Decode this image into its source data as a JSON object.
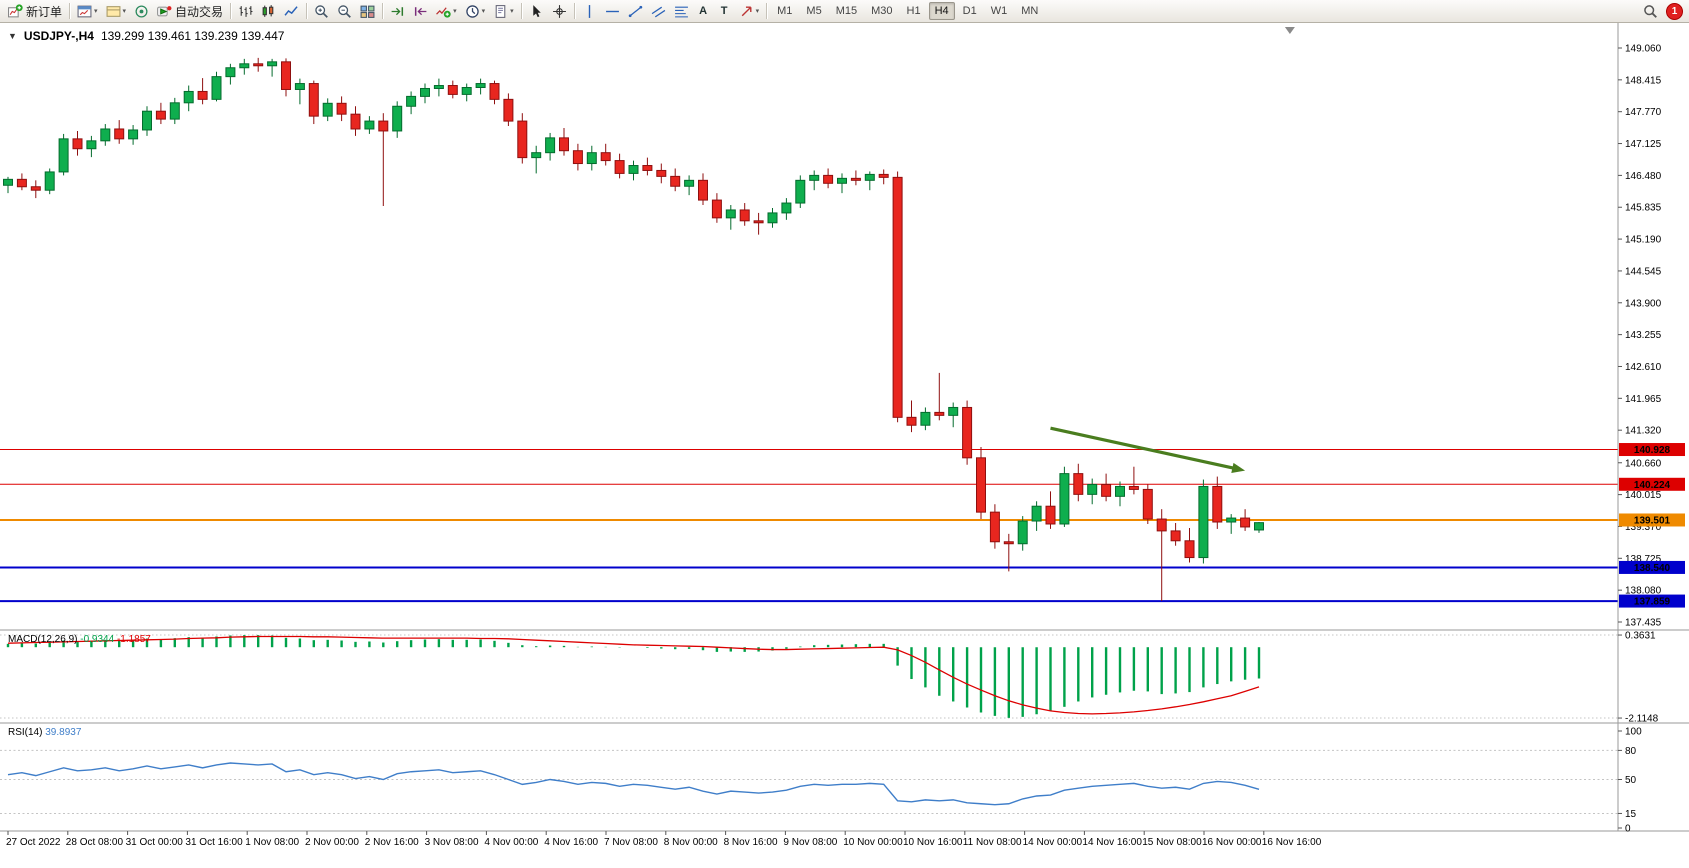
{
  "toolbar": {
    "items": [
      {
        "type": "button",
        "name": "new-order-button",
        "icon": "new-order-icon",
        "label": "新订单"
      },
      {
        "type": "sep"
      },
      {
        "type": "button",
        "name": "charts-button",
        "icon": "chart-window-icon",
        "caret": true
      },
      {
        "type": "button",
        "name": "profiles-button",
        "icon": "profiles-icon",
        "caret": true
      },
      {
        "type": "button",
        "name": "community-button",
        "icon": "community-icon"
      },
      {
        "type": "button",
        "name": "autotrading-button",
        "icon": "autotrading-icon",
        "label": "自动交易"
      },
      {
        "type": "sep"
      },
      {
        "type": "button",
        "name": "bar-chart-button",
        "icon": "bars-icon"
      },
      {
        "type": "button",
        "name": "candlestick-chart-button",
        "icon": "candles-icon"
      },
      {
        "type": "button",
        "name": "line-chart-button",
        "icon": "line-chart-icon"
      },
      {
        "type": "sep"
      },
      {
        "type": "button",
        "name": "zoom-in-button",
        "icon": "zoom-in-icon"
      },
      {
        "type": "button",
        "name": "zoom-out-button",
        "icon": "zoom-out-icon"
      },
      {
        "type": "button",
        "name": "tile-windows-button",
        "icon": "tile-windows-icon"
      },
      {
        "type": "sep"
      },
      {
        "type": "button",
        "name": "auto-scroll-button",
        "icon": "auto-scroll-icon"
      },
      {
        "type": "button",
        "name": "chart-shift-button",
        "icon": "chart-shift-icon"
      },
      {
        "type": "button",
        "name": "indicators-button",
        "icon": "indicators-icon",
        "caret": true
      },
      {
        "type": "button",
        "name": "periods-button",
        "icon": "periods-icon",
        "caret": true
      },
      {
        "type": "button",
        "name": "templates-button",
        "icon": "templates-icon",
        "caret": true
      },
      {
        "type": "sep"
      },
      {
        "type": "button",
        "name": "cursor-button",
        "icon": "cursor-icon"
      },
      {
        "type": "button",
        "name": "crosshair-button",
        "icon": "crosshair-icon"
      },
      {
        "type": "sep"
      },
      {
        "type": "button",
        "name": "vertical-line-button",
        "icon": "vline-icon"
      },
      {
        "type": "button",
        "name": "horizontal-line-button",
        "icon": "hline-icon"
      },
      {
        "type": "button",
        "name": "trendline-button",
        "icon": "trendline-icon"
      },
      {
        "type": "button",
        "name": "channel-button",
        "icon": "channel-icon"
      },
      {
        "type": "button",
        "name": "fibonacci-button",
        "icon": "fibonacci-icon"
      },
      {
        "type": "button",
        "name": "text-button",
        "glyph": "A"
      },
      {
        "type": "button",
        "name": "text-label-button",
        "glyph": "T"
      },
      {
        "type": "button",
        "name": "arrows-button",
        "icon": "arrows-tool-icon",
        "caret": true
      },
      {
        "type": "sep"
      }
    ],
    "timeframes": [
      {
        "label": "M1"
      },
      {
        "label": "M5"
      },
      {
        "label": "M15"
      },
      {
        "label": "M30"
      },
      {
        "label": "H1"
      },
      {
        "label": "H4"
      },
      {
        "label": "D1"
      },
      {
        "label": "W1"
      },
      {
        "label": "MN"
      }
    ],
    "active_timeframe": "H4",
    "right": [
      {
        "name": "search-button",
        "icon": "search-icon"
      },
      {
        "name": "notifications-button",
        "badge": "1"
      }
    ]
  },
  "chart": {
    "header": {
      "collapse_glyph": "▼",
      "symbol": "USDJPY-,H4",
      "ohlc": "139.299 139.461 139.239 139.447"
    },
    "price_axis_labels": [
      "149.060",
      "148.415",
      "147.770",
      "147.125",
      "146.480",
      "145.835",
      "145.190",
      "144.545",
      "143.900",
      "143.255",
      "142.610",
      "141.965",
      "141.320",
      "140.660",
      "140.015",
      "139.370",
      "138.725",
      "138.080",
      "137.435"
    ],
    "hlines": [
      {
        "price": 140.928,
        "label": "140.928",
        "color": "#dd0000",
        "width": 1
      },
      {
        "price": 140.224,
        "label": "140.224",
        "color": "#dd0000",
        "width": 1
      },
      {
        "price": 139.501,
        "label": "139.501",
        "color": "#ef8a00",
        "width": 2
      },
      {
        "price": 138.54,
        "label": "138.540",
        "color": "#0000cc",
        "width": 2
      },
      {
        "price": 137.859,
        "label": "137.859",
        "color": "#0000cc",
        "width": 2
      }
    ],
    "time_axis_labels": [
      "27 Oct 2022",
      "28 Oct 08:00",
      "31 Oct 00:00",
      "31 Oct 16:00",
      "1 Nov 08:00",
      "2 Nov 00:00",
      "2 Nov 16:00",
      "3 Nov 08:00",
      "4 Nov 00:00",
      "4 Nov 16:00",
      "7 Nov 08:00",
      "8 Nov 00:00",
      "8 Nov 16:00",
      "9 Nov 08:00",
      "10 Nov 00:00",
      "10 Nov 16:00",
      "11 Nov 08:00",
      "14 Nov 00:00",
      "14 Nov 16:00",
      "15 Nov 08:00",
      "16 Nov 00:00",
      "16 Nov 16:00"
    ],
    "arrow": {
      "from_idx": 75,
      "from_price": 141.36,
      "to_idx": 89,
      "to_price": 140.5
    }
  },
  "colors": {
    "bull": "#0fae4e",
    "bull_edge": "#046b2d",
    "bear": "#e8261f",
    "bear_edge": "#8f0f0f",
    "macd_hist": "#00a24a",
    "macd_signal": "#dd0000",
    "rsi": "#3f7ec9",
    "arrow": "#4a7d1f",
    "badge_text": "#ffffff",
    "axis_line": "#9a9a9a",
    "level_dots": "#c4c4c4"
  },
  "chart_data": {
    "type": "candlestick",
    "symbol": "USDJPY",
    "timeframe": "H4",
    "candles_ohlc": [
      [
        146.28,
        146.45,
        146.12,
        146.4
      ],
      [
        146.4,
        146.52,
        146.18,
        146.25
      ],
      [
        146.25,
        146.38,
        146.02,
        146.18
      ],
      [
        146.18,
        146.62,
        146.1,
        146.55
      ],
      [
        146.55,
        147.32,
        146.48,
        147.22
      ],
      [
        147.22,
        147.38,
        146.88,
        147.02
      ],
      [
        147.02,
        147.28,
        146.85,
        147.18
      ],
      [
        147.18,
        147.52,
        147.08,
        147.42
      ],
      [
        147.42,
        147.6,
        147.12,
        147.22
      ],
      [
        147.22,
        147.5,
        147.1,
        147.4
      ],
      [
        147.4,
        147.88,
        147.28,
        147.78
      ],
      [
        147.78,
        147.95,
        147.52,
        147.62
      ],
      [
        147.62,
        148.05,
        147.52,
        147.95
      ],
      [
        147.95,
        148.3,
        147.78,
        148.18
      ],
      [
        148.18,
        148.45,
        147.92,
        148.02
      ],
      [
        148.02,
        148.58,
        147.98,
        148.48
      ],
      [
        148.48,
        148.74,
        148.32,
        148.66
      ],
      [
        148.66,
        148.84,
        148.52,
        148.74
      ],
      [
        148.74,
        148.86,
        148.58,
        148.7
      ],
      [
        148.7,
        148.84,
        148.48,
        148.78
      ],
      [
        148.78,
        148.85,
        148.08,
        148.22
      ],
      [
        148.22,
        148.44,
        147.92,
        148.34
      ],
      [
        148.34,
        148.4,
        147.52,
        147.68
      ],
      [
        147.68,
        148.04,
        147.58,
        147.94
      ],
      [
        147.94,
        148.08,
        147.58,
        147.72
      ],
      [
        147.72,
        147.88,
        147.28,
        147.42
      ],
      [
        147.42,
        147.68,
        147.32,
        147.58
      ],
      [
        147.58,
        147.74,
        145.86,
        147.38
      ],
      [
        147.38,
        147.98,
        147.24,
        147.88
      ],
      [
        147.88,
        148.18,
        147.72,
        148.08
      ],
      [
        148.08,
        148.34,
        147.94,
        148.24
      ],
      [
        148.24,
        148.44,
        148.08,
        148.3
      ],
      [
        148.3,
        148.4,
        148.04,
        148.12
      ],
      [
        148.12,
        148.34,
        147.98,
        148.26
      ],
      [
        148.26,
        148.44,
        148.12,
        148.34
      ],
      [
        148.34,
        148.4,
        147.92,
        148.02
      ],
      [
        148.02,
        148.14,
        147.48,
        147.58
      ],
      [
        147.58,
        147.74,
        146.72,
        146.84
      ],
      [
        146.84,
        147.08,
        146.52,
        146.94
      ],
      [
        146.94,
        147.34,
        146.78,
        147.24
      ],
      [
        147.24,
        147.44,
        146.88,
        146.98
      ],
      [
        146.98,
        147.12,
        146.58,
        146.72
      ],
      [
        146.72,
        147.08,
        146.58,
        146.94
      ],
      [
        146.94,
        147.12,
        146.68,
        146.78
      ],
      [
        146.78,
        146.92,
        146.42,
        146.52
      ],
      [
        146.52,
        146.78,
        146.38,
        146.68
      ],
      [
        146.68,
        146.84,
        146.48,
        146.58
      ],
      [
        146.58,
        146.72,
        146.32,
        146.46
      ],
      [
        146.46,
        146.62,
        146.16,
        146.26
      ],
      [
        146.26,
        146.48,
        146.08,
        146.38
      ],
      [
        146.38,
        146.52,
        145.88,
        145.98
      ],
      [
        145.98,
        146.12,
        145.52,
        145.62
      ],
      [
        145.62,
        145.88,
        145.38,
        145.78
      ],
      [
        145.78,
        145.92,
        145.46,
        145.56
      ],
      [
        145.56,
        145.72,
        145.28,
        145.52
      ],
      [
        145.52,
        145.82,
        145.42,
        145.72
      ],
      [
        145.72,
        146.02,
        145.58,
        145.92
      ],
      [
        145.92,
        146.48,
        145.82,
        146.38
      ],
      [
        146.38,
        146.58,
        146.18,
        146.48
      ],
      [
        146.48,
        146.62,
        146.22,
        146.32
      ],
      [
        146.32,
        146.52,
        146.12,
        146.42
      ],
      [
        146.42,
        146.58,
        146.28,
        146.38
      ],
      [
        146.38,
        146.56,
        146.18,
        146.5
      ],
      [
        146.5,
        146.6,
        146.3,
        146.44
      ],
      [
        146.44,
        146.56,
        141.48,
        141.58
      ],
      [
        141.58,
        141.92,
        141.28,
        141.42
      ],
      [
        141.42,
        141.78,
        141.32,
        141.68
      ],
      [
        141.68,
        142.48,
        141.52,
        141.62
      ],
      [
        141.62,
        141.88,
        141.38,
        141.78
      ],
      [
        141.78,
        141.92,
        140.62,
        140.76
      ],
      [
        140.76,
        140.98,
        139.52,
        139.66
      ],
      [
        139.66,
        139.82,
        138.92,
        139.06
      ],
      [
        139.06,
        139.22,
        138.46,
        139.02
      ],
      [
        139.02,
        139.58,
        138.88,
        139.48
      ],
      [
        139.48,
        139.88,
        139.28,
        139.78
      ],
      [
        139.78,
        140.08,
        139.32,
        139.42
      ],
      [
        139.42,
        140.58,
        139.36,
        140.44
      ],
      [
        140.44,
        140.64,
        139.88,
        140.02
      ],
      [
        140.02,
        140.34,
        139.82,
        140.22
      ],
      [
        140.22,
        140.44,
        139.88,
        139.98
      ],
      [
        139.98,
        140.28,
        139.78,
        140.18
      ],
      [
        140.18,
        140.58,
        140.02,
        140.12
      ],
      [
        140.12,
        140.22,
        139.42,
        139.52
      ],
      [
        139.52,
        139.72,
        137.86,
        139.28
      ],
      [
        139.28,
        139.44,
        138.98,
        139.08
      ],
      [
        139.08,
        139.34,
        138.64,
        138.74
      ],
      [
        138.74,
        140.32,
        138.62,
        140.18
      ],
      [
        140.18,
        140.38,
        139.32,
        139.46
      ],
      [
        139.46,
        139.62,
        139.22,
        139.54
      ],
      [
        139.54,
        139.72,
        139.28,
        139.36
      ],
      [
        139.299,
        139.461,
        139.239,
        139.447
      ]
    ],
    "macd": {
      "title": "MACD(12,26,9)",
      "values": [
        "-0.9344",
        "-1.1857"
      ],
      "axis_labels": [
        "0.3631",
        "-2.1148"
      ],
      "axis_values": [
        0.3631,
        -2.1148
      ],
      "histogram": [
        0.1,
        0.12,
        0.11,
        0.14,
        0.2,
        0.18,
        0.19,
        0.22,
        0.2,
        0.21,
        0.26,
        0.24,
        0.27,
        0.3,
        0.28,
        0.32,
        0.35,
        0.36,
        0.36,
        0.35,
        0.28,
        0.26,
        0.21,
        0.22,
        0.2,
        0.16,
        0.17,
        0.14,
        0.18,
        0.21,
        0.23,
        0.24,
        0.22,
        0.22,
        0.23,
        0.19,
        0.13,
        0.06,
        0.03,
        0.05,
        0.04,
        0.01,
        0.02,
        0.01,
        -0.01,
        0.0,
        -0.02,
        -0.04,
        -0.06,
        -0.05,
        -0.09,
        -0.14,
        -0.13,
        -0.14,
        -0.13,
        -0.1,
        -0.05,
        0.02,
        0.06,
        0.07,
        0.08,
        0.09,
        0.1,
        0.1,
        -0.55,
        -0.95,
        -1.2,
        -1.45,
        -1.62,
        -1.8,
        -1.95,
        -2.05,
        -2.11,
        -2.08,
        -2.0,
        -1.9,
        -1.78,
        -1.62,
        -1.5,
        -1.42,
        -1.35,
        -1.3,
        -1.32,
        -1.4,
        -1.38,
        -1.34,
        -1.2,
        -1.1,
        -1.02,
        -0.97,
        -0.9344
      ],
      "signal": [
        0.12,
        0.13,
        0.14,
        0.15,
        0.16,
        0.17,
        0.18,
        0.19,
        0.2,
        0.21,
        0.22,
        0.23,
        0.24,
        0.26,
        0.27,
        0.28,
        0.3,
        0.31,
        0.32,
        0.32,
        0.32,
        0.32,
        0.31,
        0.31,
        0.3,
        0.29,
        0.28,
        0.27,
        0.27,
        0.27,
        0.27,
        0.27,
        0.27,
        0.27,
        0.26,
        0.26,
        0.25,
        0.23,
        0.21,
        0.19,
        0.17,
        0.15,
        0.13,
        0.11,
        0.09,
        0.07,
        0.06,
        0.05,
        0.04,
        0.03,
        0.02,
        0.0,
        -0.02,
        -0.04,
        -0.06,
        -0.07,
        -0.07,
        -0.06,
        -0.05,
        -0.04,
        -0.03,
        -0.02,
        -0.01,
        0.0,
        -0.08,
        -0.25,
        -0.45,
        -0.68,
        -0.9,
        -1.1,
        -1.28,
        -1.45,
        -1.6,
        -1.72,
        -1.82,
        -1.9,
        -1.95,
        -1.98,
        -1.99,
        -1.98,
        -1.96,
        -1.93,
        -1.89,
        -1.84,
        -1.78,
        -1.71,
        -1.63,
        -1.54,
        -1.45,
        -1.32,
        -1.1857
      ]
    },
    "rsi": {
      "title": "RSI(14)",
      "value": "39.8937",
      "axis_labels": [
        "100",
        "80",
        "50",
        "15",
        "0"
      ],
      "axis_values": [
        100,
        80,
        50,
        15,
        0
      ],
      "levels": [
        80,
        50,
        15
      ],
      "values": [
        55,
        57,
        54,
        58,
        62,
        59,
        60,
        62,
        59,
        61,
        64,
        61,
        63,
        65,
        62,
        65,
        67,
        66,
        65,
        66,
        58,
        60,
        55,
        57,
        55,
        51,
        53,
        50,
        56,
        58,
        59,
        60,
        57,
        58,
        59,
        55,
        50,
        45,
        47,
        50,
        48,
        45,
        47,
        46,
        43,
        45,
        44,
        42,
        40,
        42,
        38,
        35,
        38,
        37,
        36,
        37,
        39,
        43,
        45,
        44,
        45,
        45,
        46,
        45,
        28,
        27,
        29,
        28,
        29,
        26,
        25,
        24,
        25,
        30,
        33,
        34,
        39,
        41,
        43,
        44,
        45,
        46,
        43,
        41,
        42,
        40,
        46,
        48,
        47,
        44,
        39.89
      ]
    }
  }
}
